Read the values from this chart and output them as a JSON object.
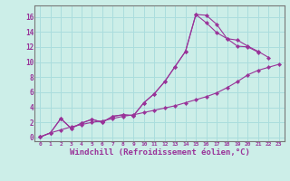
{
  "background_color": "#cceee8",
  "grid_color": "#aadddd",
  "line_color": "#993399",
  "xlabel": "Windchill (Refroidissement éolien,°C)",
  "xlabel_fontsize": 6.5,
  "xtick_labels": [
    "0",
    "1",
    "2",
    "3",
    "4",
    "5",
    "6",
    "7",
    "8",
    "9",
    "10",
    "11",
    "12",
    "13",
    "14",
    "15",
    "16",
    "17",
    "18",
    "19",
    "20",
    "21",
    "22",
    "23"
  ],
  "ytick_values": [
    0,
    2,
    4,
    6,
    8,
    10,
    12,
    14,
    16
  ],
  "xlim": [
    -0.5,
    23.5
  ],
  "ylim": [
    -0.5,
    17.5
  ],
  "line1_x": [
    0,
    1,
    2,
    3,
    4,
    5,
    6,
    7,
    8,
    9,
    10,
    11,
    12,
    13,
    14,
    15,
    16,
    17,
    18,
    19,
    20,
    21,
    22,
    23
  ],
  "line1_y": [
    0.05,
    0.6,
    1.0,
    1.4,
    1.7,
    2.0,
    2.2,
    2.5,
    2.8,
    3.0,
    3.3,
    3.6,
    3.9,
    4.2,
    4.6,
    5.0,
    5.4,
    5.9,
    6.6,
    7.4,
    8.3,
    8.9,
    9.3,
    9.7
  ],
  "line2_x": [
    0,
    1,
    2,
    3,
    4,
    5,
    6,
    7,
    8,
    9,
    10,
    11,
    12,
    13,
    14,
    15,
    16,
    17,
    18,
    19,
    20,
    21,
    22
  ],
  "line2_y": [
    0.05,
    0.6,
    2.5,
    1.2,
    1.9,
    2.4,
    2.0,
    2.8,
    3.0,
    2.9,
    4.6,
    5.8,
    7.4,
    9.4,
    11.4,
    16.3,
    16.2,
    15.0,
    13.1,
    12.9,
    12.1,
    11.4,
    10.6
  ],
  "line3_x": [
    0,
    1,
    2,
    3,
    4,
    5,
    6,
    7,
    8,
    9,
    10,
    11,
    12,
    13,
    14,
    15,
    16,
    17,
    18,
    19,
    20,
    21
  ],
  "line3_y": [
    0.05,
    0.6,
    2.5,
    1.2,
    1.9,
    2.4,
    2.0,
    2.8,
    3.0,
    2.9,
    4.6,
    5.8,
    7.4,
    9.4,
    11.4,
    16.3,
    15.2,
    13.9,
    13.1,
    12.1,
    12.0,
    11.3
  ]
}
